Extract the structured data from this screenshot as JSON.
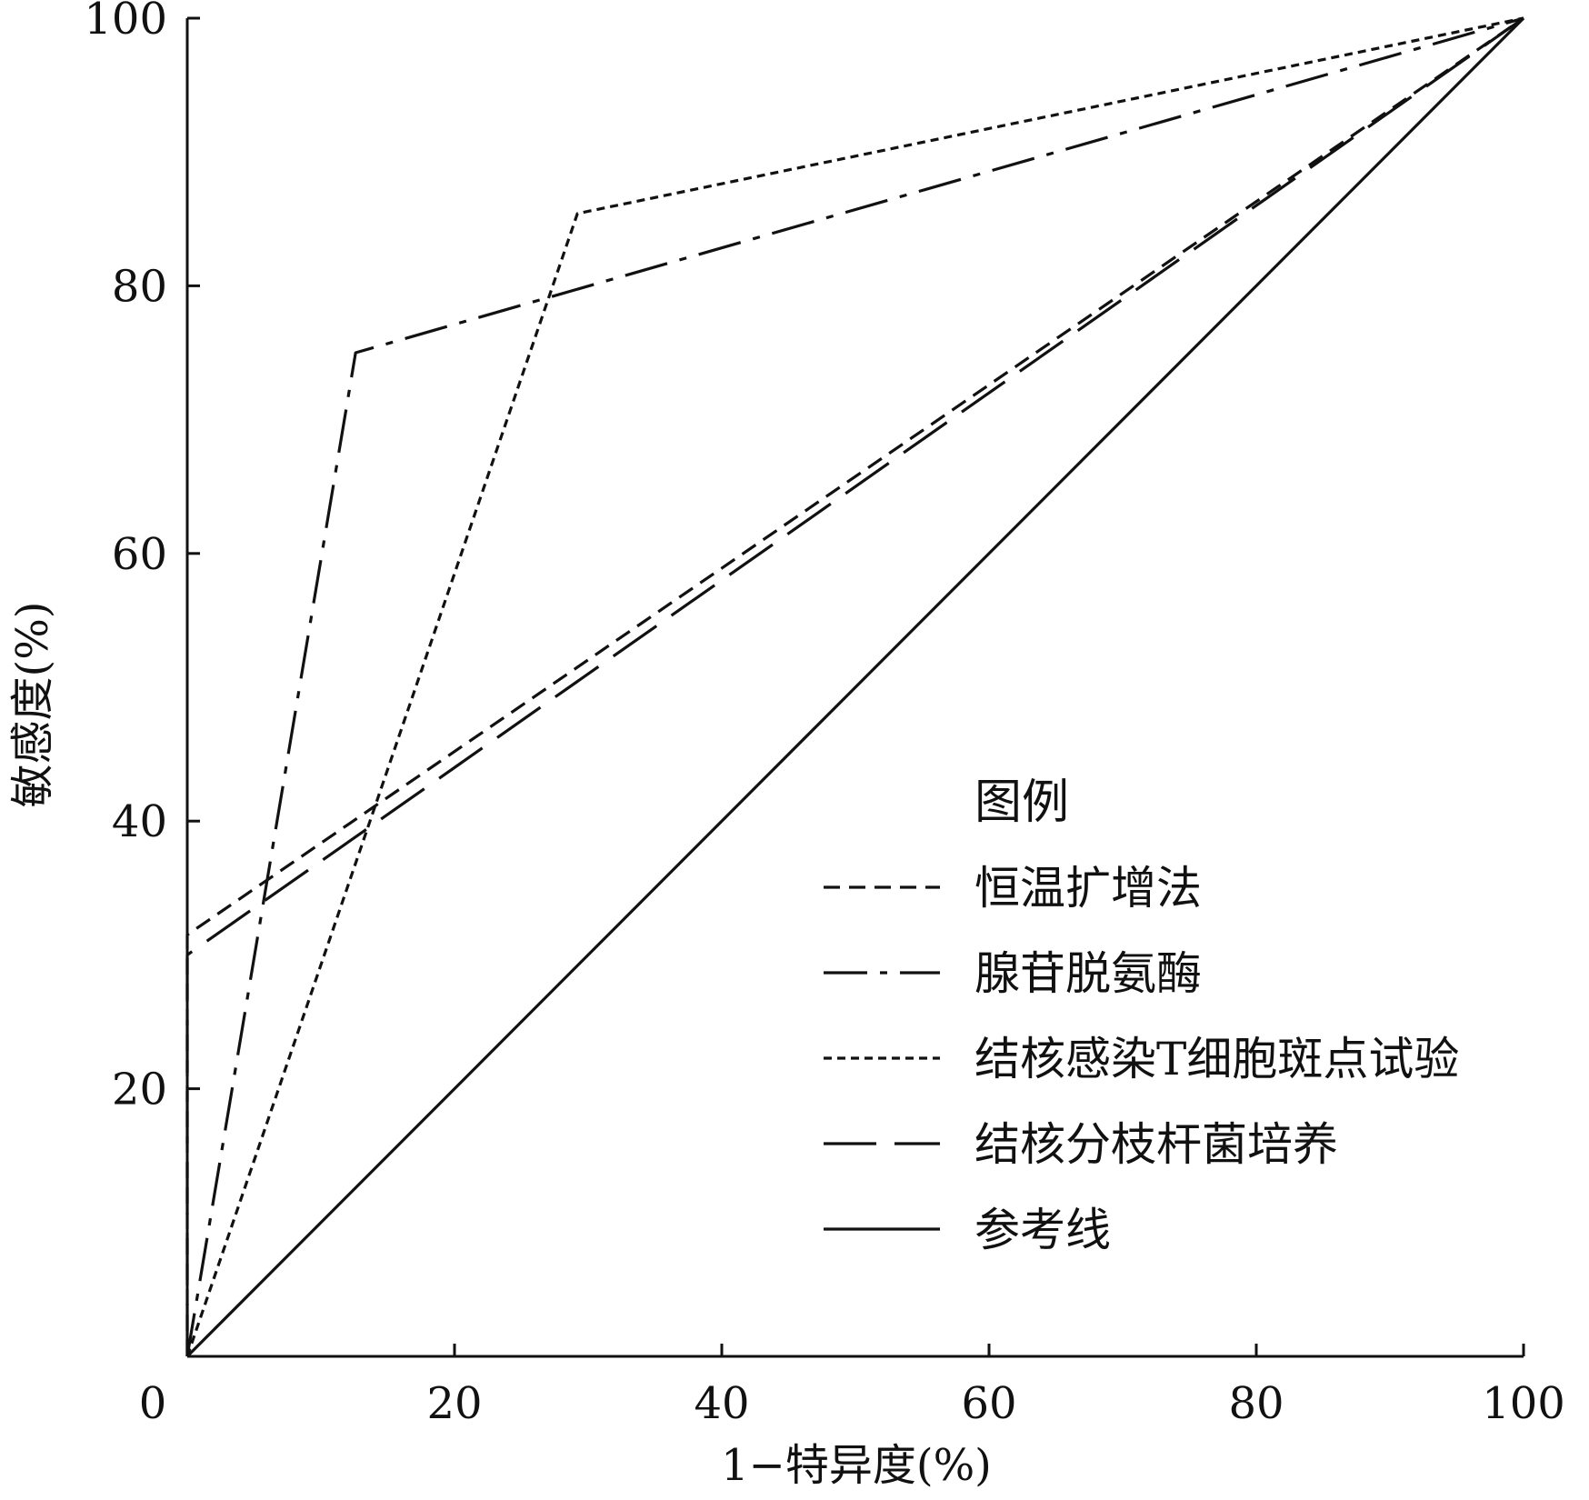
{
  "chart_data": {
    "type": "line",
    "title": "",
    "xlabel": "1−特异度(%)",
    "ylabel": "敏感度(%)",
    "xlim": [
      0,
      100
    ],
    "ylim": [
      0,
      100
    ],
    "x_ticks": [
      0,
      20,
      40,
      60,
      80,
      100
    ],
    "y_ticks": [
      20,
      40,
      60,
      80,
      100
    ],
    "grid": false,
    "legend": {
      "title": "图例",
      "placement": "bottom-right"
    },
    "series": [
      {
        "name": "恒温扩增法",
        "style": "dashed",
        "color": "#111111",
        "points": [
          [
            0,
            0
          ],
          [
            0,
            31.5
          ],
          [
            100,
            100
          ]
        ]
      },
      {
        "name": "腺苷脱氨酶",
        "style": "dash-dot",
        "color": "#111111",
        "points": [
          [
            0,
            0
          ],
          [
            12.6,
            75
          ],
          [
            100,
            100
          ]
        ]
      },
      {
        "name": "结核感染T细胞斑点试验",
        "style": "dotted",
        "color": "#111111",
        "points": [
          [
            0,
            0
          ],
          [
            29.2,
            85.4
          ],
          [
            100,
            100
          ]
        ]
      },
      {
        "name": "结核分枝杆菌培养",
        "style": "long-dash",
        "color": "#111111",
        "points": [
          [
            0,
            0
          ],
          [
            0,
            30
          ],
          [
            100,
            100
          ]
        ]
      },
      {
        "name": "参考线",
        "style": "solid",
        "color": "#111111",
        "points": [
          [
            0,
            0
          ],
          [
            100,
            100
          ]
        ]
      }
    ]
  }
}
